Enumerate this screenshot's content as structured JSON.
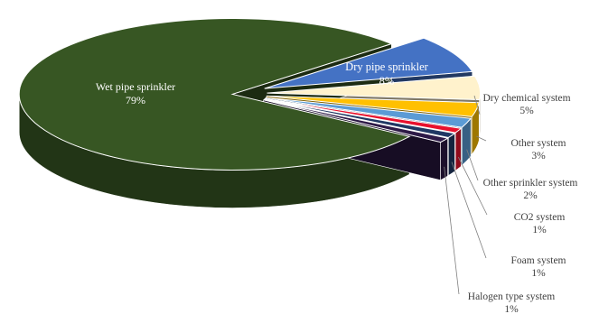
{
  "chart_data": {
    "type": "pie",
    "style": "3d-exploded",
    "slices": [
      {
        "name": "Wet pipe sprinkler",
        "value": 79,
        "label": "79%",
        "color": "#375623"
      },
      {
        "name": "Dry pipe sprinkler",
        "value": 8,
        "label": "8%",
        "color": "#4472c4"
      },
      {
        "name": "Dry chemical system",
        "value": 5,
        "label": "5%",
        "color": "#fff2cc"
      },
      {
        "name": "Other system",
        "value": 3,
        "label": "3%",
        "color": "#ffc000"
      },
      {
        "name": "Other sprinkler system",
        "value": 2,
        "label": "2%",
        "color": "#5b9bd5"
      },
      {
        "name": "CO2 system",
        "value": 1,
        "label": "1%",
        "color": "#e8112d"
      },
      {
        "name": "Foam system",
        "value": 1,
        "label": "1%",
        "color": "#203864"
      },
      {
        "name": "Halogen type system",
        "value": 1,
        "label": "1%",
        "color": "#2e1a47"
      }
    ]
  }
}
